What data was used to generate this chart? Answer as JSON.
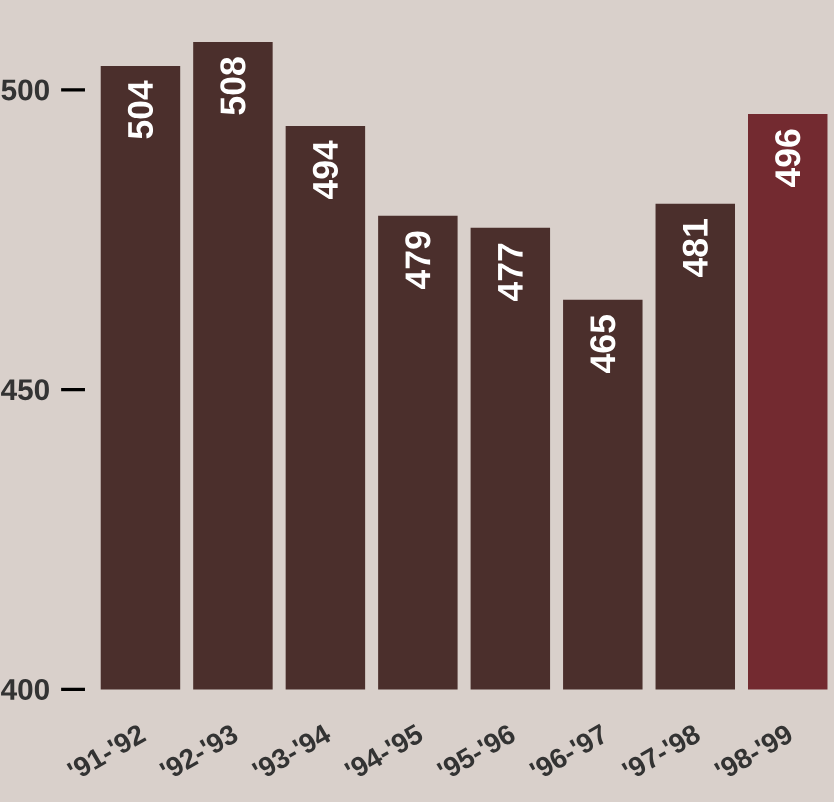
{
  "chart_data": {
    "type": "bar",
    "categories": [
      "'91-'92",
      "'92-'93",
      "'93-'94",
      "'94-'95",
      "'95-'96",
      "'96-'97",
      "'97-'98",
      "'98-'99"
    ],
    "values": [
      504,
      508,
      494,
      479,
      477,
      465,
      481,
      496
    ],
    "colors": [
      "#4b2f2c",
      "#4b2f2c",
      "#4b2f2c",
      "#4b2f2c",
      "#4b2f2c",
      "#4b2f2c",
      "#4b2f2c",
      "#732a30"
    ],
    "ylim": [
      400,
      515
    ],
    "yticks": [
      400,
      450,
      500
    ],
    "data_labels": true,
    "grid": false
  }
}
